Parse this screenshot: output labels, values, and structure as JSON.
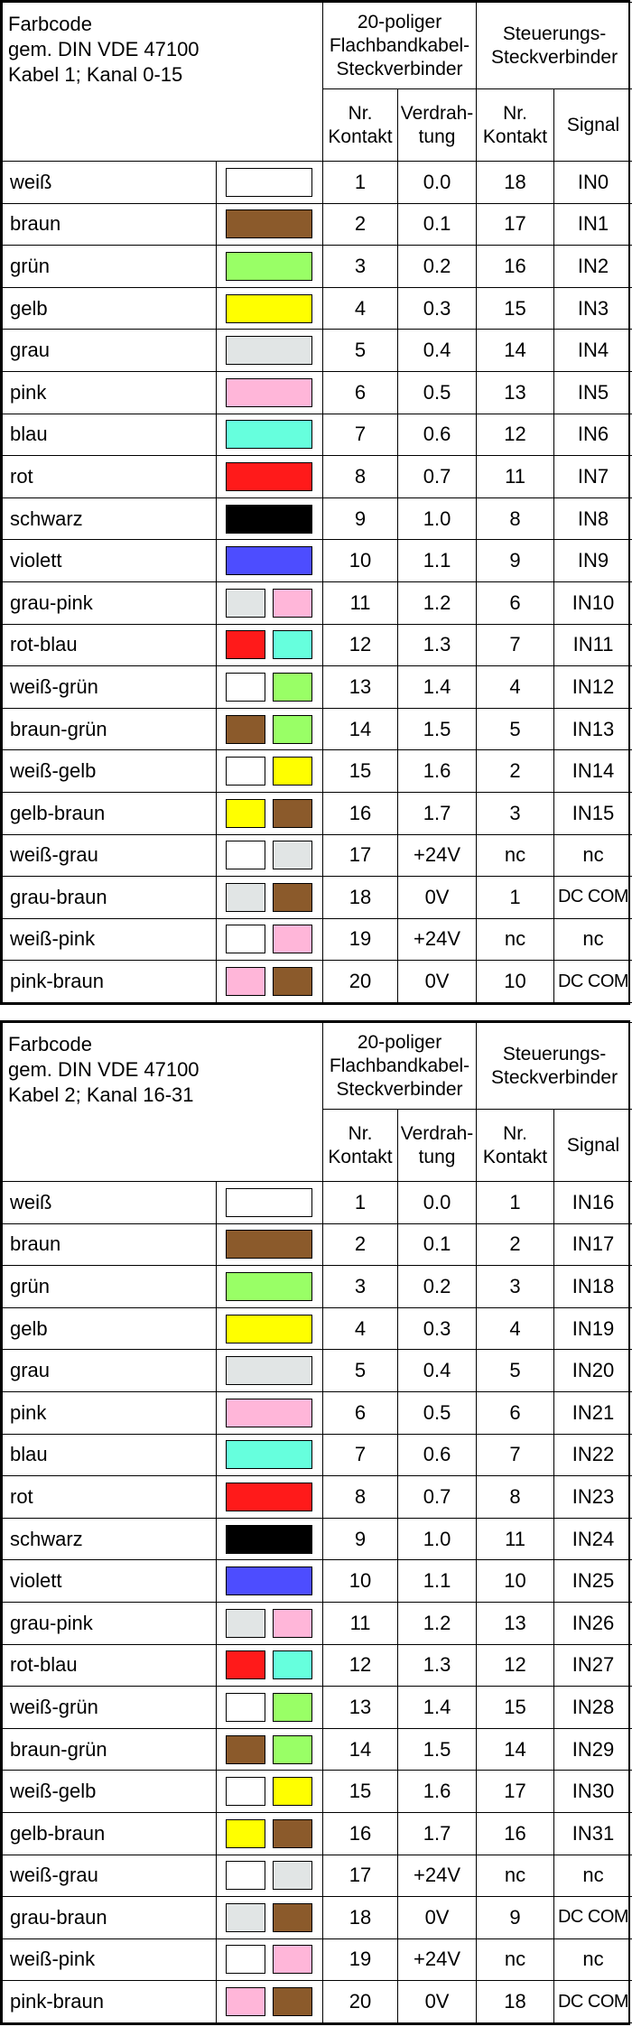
{
  "header_labels": {
    "group_flat": [
      "20-poliger",
      "Flachbandkabel-",
      "Steckverbinder"
    ],
    "group_ctrl": [
      "Steuerungs-",
      "Steckverbinder"
    ],
    "nr_kontakt": [
      "Nr.",
      "Kontakt"
    ],
    "verdrahtung": [
      "Verdrah-",
      "tung"
    ],
    "signal": "Signal"
  },
  "colors": {
    "weiß": "#ffffff",
    "braun": "#8b5a2b",
    "grün": "#99ff66",
    "gelb": "#ffff00",
    "grau": "#e1e5e5",
    "pink": "#ffb6d9",
    "blau": "#66ffdd",
    "rot": "#ff1a1a",
    "schwarz": "#000000",
    "violett": "#4d4dff"
  },
  "tables": [
    {
      "title": [
        "Farbcode",
        "gem. DIN VDE 47100",
        "Kabel 1; Kanal 0-15"
      ],
      "rows": [
        {
          "name": "weiß",
          "swatch": [
            "weiß"
          ],
          "kontakt": "1",
          "verdrahtung": "0.0",
          "ctrl_kontakt": "18",
          "signal": "IN0"
        },
        {
          "name": "braun",
          "swatch": [
            "braun"
          ],
          "kontakt": "2",
          "verdrahtung": "0.1",
          "ctrl_kontakt": "17",
          "signal": "IN1"
        },
        {
          "name": "grün",
          "swatch": [
            "grün"
          ],
          "kontakt": "3",
          "verdrahtung": "0.2",
          "ctrl_kontakt": "16",
          "signal": "IN2"
        },
        {
          "name": "gelb",
          "swatch": [
            "gelb"
          ],
          "kontakt": "4",
          "verdrahtung": "0.3",
          "ctrl_kontakt": "15",
          "signal": "IN3"
        },
        {
          "name": "grau",
          "swatch": [
            "grau"
          ],
          "kontakt": "5",
          "verdrahtung": "0.4",
          "ctrl_kontakt": "14",
          "signal": "IN4"
        },
        {
          "name": "pink",
          "swatch": [
            "pink"
          ],
          "kontakt": "6",
          "verdrahtung": "0.5",
          "ctrl_kontakt": "13",
          "signal": "IN5"
        },
        {
          "name": "blau",
          "swatch": [
            "blau"
          ],
          "kontakt": "7",
          "verdrahtung": "0.6",
          "ctrl_kontakt": "12",
          "signal": "IN6"
        },
        {
          "name": "rot",
          "swatch": [
            "rot"
          ],
          "kontakt": "8",
          "verdrahtung": "0.7",
          "ctrl_kontakt": "11",
          "signal": "IN7"
        },
        {
          "name": "schwarz",
          "swatch": [
            "schwarz"
          ],
          "kontakt": "9",
          "verdrahtung": "1.0",
          "ctrl_kontakt": "8",
          "signal": "IN8"
        },
        {
          "name": "violett",
          "swatch": [
            "violett"
          ],
          "kontakt": "10",
          "verdrahtung": "1.1",
          "ctrl_kontakt": "9",
          "signal": "IN9"
        },
        {
          "name": "grau-pink",
          "swatch": [
            "grau",
            "pink"
          ],
          "kontakt": "11",
          "verdrahtung": "1.2",
          "ctrl_kontakt": "6",
          "signal": "IN10"
        },
        {
          "name": "rot-blau",
          "swatch": [
            "rot",
            "blau"
          ],
          "kontakt": "12",
          "verdrahtung": "1.3",
          "ctrl_kontakt": "7",
          "signal": "IN11"
        },
        {
          "name": "weiß-grün",
          "swatch": [
            "weiß",
            "grün"
          ],
          "kontakt": "13",
          "verdrahtung": "1.4",
          "ctrl_kontakt": "4",
          "signal": "IN12"
        },
        {
          "name": "braun-grün",
          "swatch": [
            "braun",
            "grün"
          ],
          "kontakt": "14",
          "verdrahtung": "1.5",
          "ctrl_kontakt": "5",
          "signal": "IN13"
        },
        {
          "name": "weiß-gelb",
          "swatch": [
            "weiß",
            "gelb"
          ],
          "kontakt": "15",
          "verdrahtung": "1.6",
          "ctrl_kontakt": "2",
          "signal": "IN14"
        },
        {
          "name": "gelb-braun",
          "swatch": [
            "gelb",
            "braun"
          ],
          "kontakt": "16",
          "verdrahtung": "1.7",
          "ctrl_kontakt": "3",
          "signal": "IN15"
        },
        {
          "name": "weiß-grau",
          "swatch": [
            "weiß",
            "grau"
          ],
          "kontakt": "17",
          "verdrahtung": "+24V",
          "ctrl_kontakt": "nc",
          "signal": "nc"
        },
        {
          "name": "grau-braun",
          "swatch": [
            "grau",
            "braun"
          ],
          "kontakt": "18",
          "verdrahtung": "0V",
          "ctrl_kontakt": "1",
          "signal": "DC COM"
        },
        {
          "name": "weiß-pink",
          "swatch": [
            "weiß",
            "pink"
          ],
          "kontakt": "19",
          "verdrahtung": "+24V",
          "ctrl_kontakt": "nc",
          "signal": "nc"
        },
        {
          "name": "pink-braun",
          "swatch": [
            "pink",
            "braun"
          ],
          "kontakt": "20",
          "verdrahtung": "0V",
          "ctrl_kontakt": "10",
          "signal": "DC COM"
        }
      ]
    },
    {
      "title": [
        "Farbcode",
        "gem. DIN VDE 47100",
        "Kabel 2; Kanal 16-31"
      ],
      "rows": [
        {
          "name": "weiß",
          "swatch": [
            "weiß"
          ],
          "kontakt": "1",
          "verdrahtung": "0.0",
          "ctrl_kontakt": "1",
          "signal": "IN16"
        },
        {
          "name": "braun",
          "swatch": [
            "braun"
          ],
          "kontakt": "2",
          "verdrahtung": "0.1",
          "ctrl_kontakt": "2",
          "signal": "IN17"
        },
        {
          "name": "grün",
          "swatch": [
            "grün"
          ],
          "kontakt": "3",
          "verdrahtung": "0.2",
          "ctrl_kontakt": "3",
          "signal": "IN18"
        },
        {
          "name": "gelb",
          "swatch": [
            "gelb"
          ],
          "kontakt": "4",
          "verdrahtung": "0.3",
          "ctrl_kontakt": "4",
          "signal": "IN19"
        },
        {
          "name": "grau",
          "swatch": [
            "grau"
          ],
          "kontakt": "5",
          "verdrahtung": "0.4",
          "ctrl_kontakt": "5",
          "signal": "IN20"
        },
        {
          "name": "pink",
          "swatch": [
            "pink"
          ],
          "kontakt": "6",
          "verdrahtung": "0.5",
          "ctrl_kontakt": "6",
          "signal": "IN21"
        },
        {
          "name": "blau",
          "swatch": [
            "blau"
          ],
          "kontakt": "7",
          "verdrahtung": "0.6",
          "ctrl_kontakt": "7",
          "signal": "IN22"
        },
        {
          "name": "rot",
          "swatch": [
            "rot"
          ],
          "kontakt": "8",
          "verdrahtung": "0.7",
          "ctrl_kontakt": "8",
          "signal": "IN23"
        },
        {
          "name": "schwarz",
          "swatch": [
            "schwarz"
          ],
          "kontakt": "9",
          "verdrahtung": "1.0",
          "ctrl_kontakt": "11",
          "signal": "IN24"
        },
        {
          "name": "violett",
          "swatch": [
            "violett"
          ],
          "kontakt": "10",
          "verdrahtung": "1.1",
          "ctrl_kontakt": "10",
          "signal": "IN25"
        },
        {
          "name": "grau-pink",
          "swatch": [
            "grau",
            "pink"
          ],
          "kontakt": "11",
          "verdrahtung": "1.2",
          "ctrl_kontakt": "13",
          "signal": "IN26"
        },
        {
          "name": "rot-blau",
          "swatch": [
            "rot",
            "blau"
          ],
          "kontakt": "12",
          "verdrahtung": "1.3",
          "ctrl_kontakt": "12",
          "signal": "IN27"
        },
        {
          "name": "weiß-grün",
          "swatch": [
            "weiß",
            "grün"
          ],
          "kontakt": "13",
          "verdrahtung": "1.4",
          "ctrl_kontakt": "15",
          "signal": "IN28"
        },
        {
          "name": "braun-grün",
          "swatch": [
            "braun",
            "grün"
          ],
          "kontakt": "14",
          "verdrahtung": "1.5",
          "ctrl_kontakt": "14",
          "signal": "IN29"
        },
        {
          "name": "weiß-gelb",
          "swatch": [
            "weiß",
            "gelb"
          ],
          "kontakt": "15",
          "verdrahtung": "1.6",
          "ctrl_kontakt": "17",
          "signal": "IN30"
        },
        {
          "name": "gelb-braun",
          "swatch": [
            "gelb",
            "braun"
          ],
          "kontakt": "16",
          "verdrahtung": "1.7",
          "ctrl_kontakt": "16",
          "signal": "IN31"
        },
        {
          "name": "weiß-grau",
          "swatch": [
            "weiß",
            "grau"
          ],
          "kontakt": "17",
          "verdrahtung": "+24V",
          "ctrl_kontakt": "nc",
          "signal": "nc"
        },
        {
          "name": "grau-braun",
          "swatch": [
            "grau",
            "braun"
          ],
          "kontakt": "18",
          "verdrahtung": "0V",
          "ctrl_kontakt": "9",
          "signal": "DC COM"
        },
        {
          "name": "weiß-pink",
          "swatch": [
            "weiß",
            "pink"
          ],
          "kontakt": "19",
          "verdrahtung": "+24V",
          "ctrl_kontakt": "nc",
          "signal": "nc"
        },
        {
          "name": "pink-braun",
          "swatch": [
            "pink",
            "braun"
          ],
          "kontakt": "20",
          "verdrahtung": "0V",
          "ctrl_kontakt": "18",
          "signal": "DC COM"
        }
      ]
    }
  ]
}
